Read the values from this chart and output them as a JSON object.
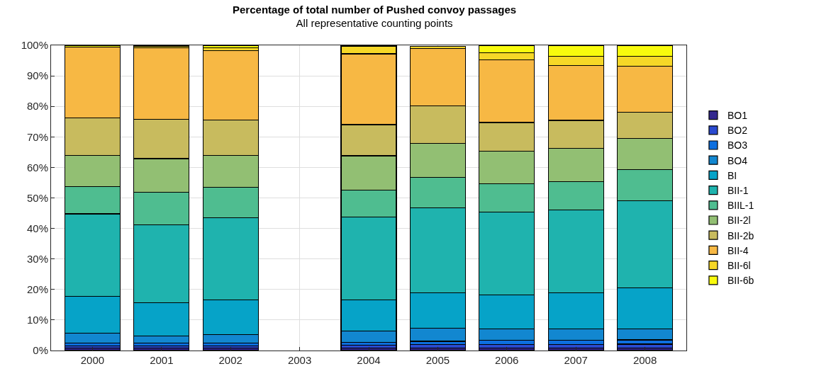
{
  "chart_data": {
    "type": "bar",
    "title": "Percentage of total number of Pushed convoy passages",
    "subtitle": "All representative counting points",
    "categories": [
      "2000",
      "2001",
      "2002",
      "2003",
      "2004",
      "2005",
      "2006",
      "2007",
      "2008"
    ],
    "stacked": true,
    "ylim": [
      0,
      100
    ],
    "yticks": [
      {
        "value": 0,
        "label": "0%"
      },
      {
        "value": 10,
        "label": "10%"
      },
      {
        "value": 20,
        "label": "20%"
      },
      {
        "value": 30,
        "label": "30%"
      },
      {
        "value": 40,
        "label": "40%"
      },
      {
        "value": 50,
        "label": "50%"
      },
      {
        "value": 60,
        "label": "60%"
      },
      {
        "value": 70,
        "label": "70%"
      },
      {
        "value": 80,
        "label": "80%"
      },
      {
        "value": 90,
        "label": "90%"
      },
      {
        "value": 100,
        "label": "100%"
      }
    ],
    "grid": true,
    "legend": "right",
    "series": [
      {
        "name": "BO1",
        "color": "#33288e",
        "values": [
          0.8,
          0.8,
          0.8,
          null,
          0.8,
          0.9,
          0.9,
          0.9,
          0.9
        ]
      },
      {
        "name": "BO2",
        "color": "#2a4ad0",
        "values": [
          0.8,
          0.8,
          0.8,
          null,
          0.9,
          1.0,
          1.1,
          1.1,
          1.2
        ]
      },
      {
        "name": "BO3",
        "color": "#0d6fe0",
        "values": [
          0.9,
          0.8,
          0.9,
          null,
          0.9,
          1.1,
          1.4,
          1.4,
          1.4
        ]
      },
      {
        "name": "BO4",
        "color": "#1287d0",
        "values": [
          3.1,
          2.4,
          2.8,
          null,
          3.7,
          4.3,
          3.6,
          3.6,
          3.5
        ]
      },
      {
        "name": "BI",
        "color": "#06a3c8",
        "values": [
          12.2,
          10.8,
          11.2,
          null,
          10.2,
          11.7,
          11.3,
          12.0,
          13.5
        ]
      },
      {
        "name": "BII-1",
        "color": "#1fb3ae",
        "values": [
          27.0,
          25.5,
          27.0,
          null,
          27.3,
          27.8,
          27.1,
          27.1,
          28.5
        ]
      },
      {
        "name": "BIIL-1",
        "color": "#4fbd90",
        "values": [
          8.9,
          10.8,
          10.0,
          null,
          8.7,
          10.0,
          9.2,
          9.3,
          10.2
        ]
      },
      {
        "name": "BII-2l",
        "color": "#92bf73",
        "values": [
          10.2,
          11.0,
          10.5,
          null,
          11.3,
          11.0,
          10.8,
          10.8,
          10.3
        ]
      },
      {
        "name": "BII-2b",
        "color": "#c8bb5e",
        "values": [
          12.3,
          12.8,
          11.5,
          null,
          10.2,
          12.4,
          9.3,
          9.2,
          8.5
        ]
      },
      {
        "name": "BII-4",
        "color": "#f7b844",
        "values": [
          23.3,
          23.5,
          22.8,
          null,
          23.2,
          18.7,
          20.6,
          17.9,
          15.2
        ]
      },
      {
        "name": "BII-6l",
        "color": "#f6d727",
        "values": [
          null,
          0.4,
          0.9,
          null,
          2.4,
          0.8,
          2.3,
          3.1,
          3.2
        ]
      },
      {
        "name": "BII-6b",
        "color": "#f8fa0d",
        "values": [
          0.5,
          0.4,
          0.8,
          null,
          0.4,
          null,
          2.4,
          3.6,
          3.6
        ]
      }
    ]
  }
}
